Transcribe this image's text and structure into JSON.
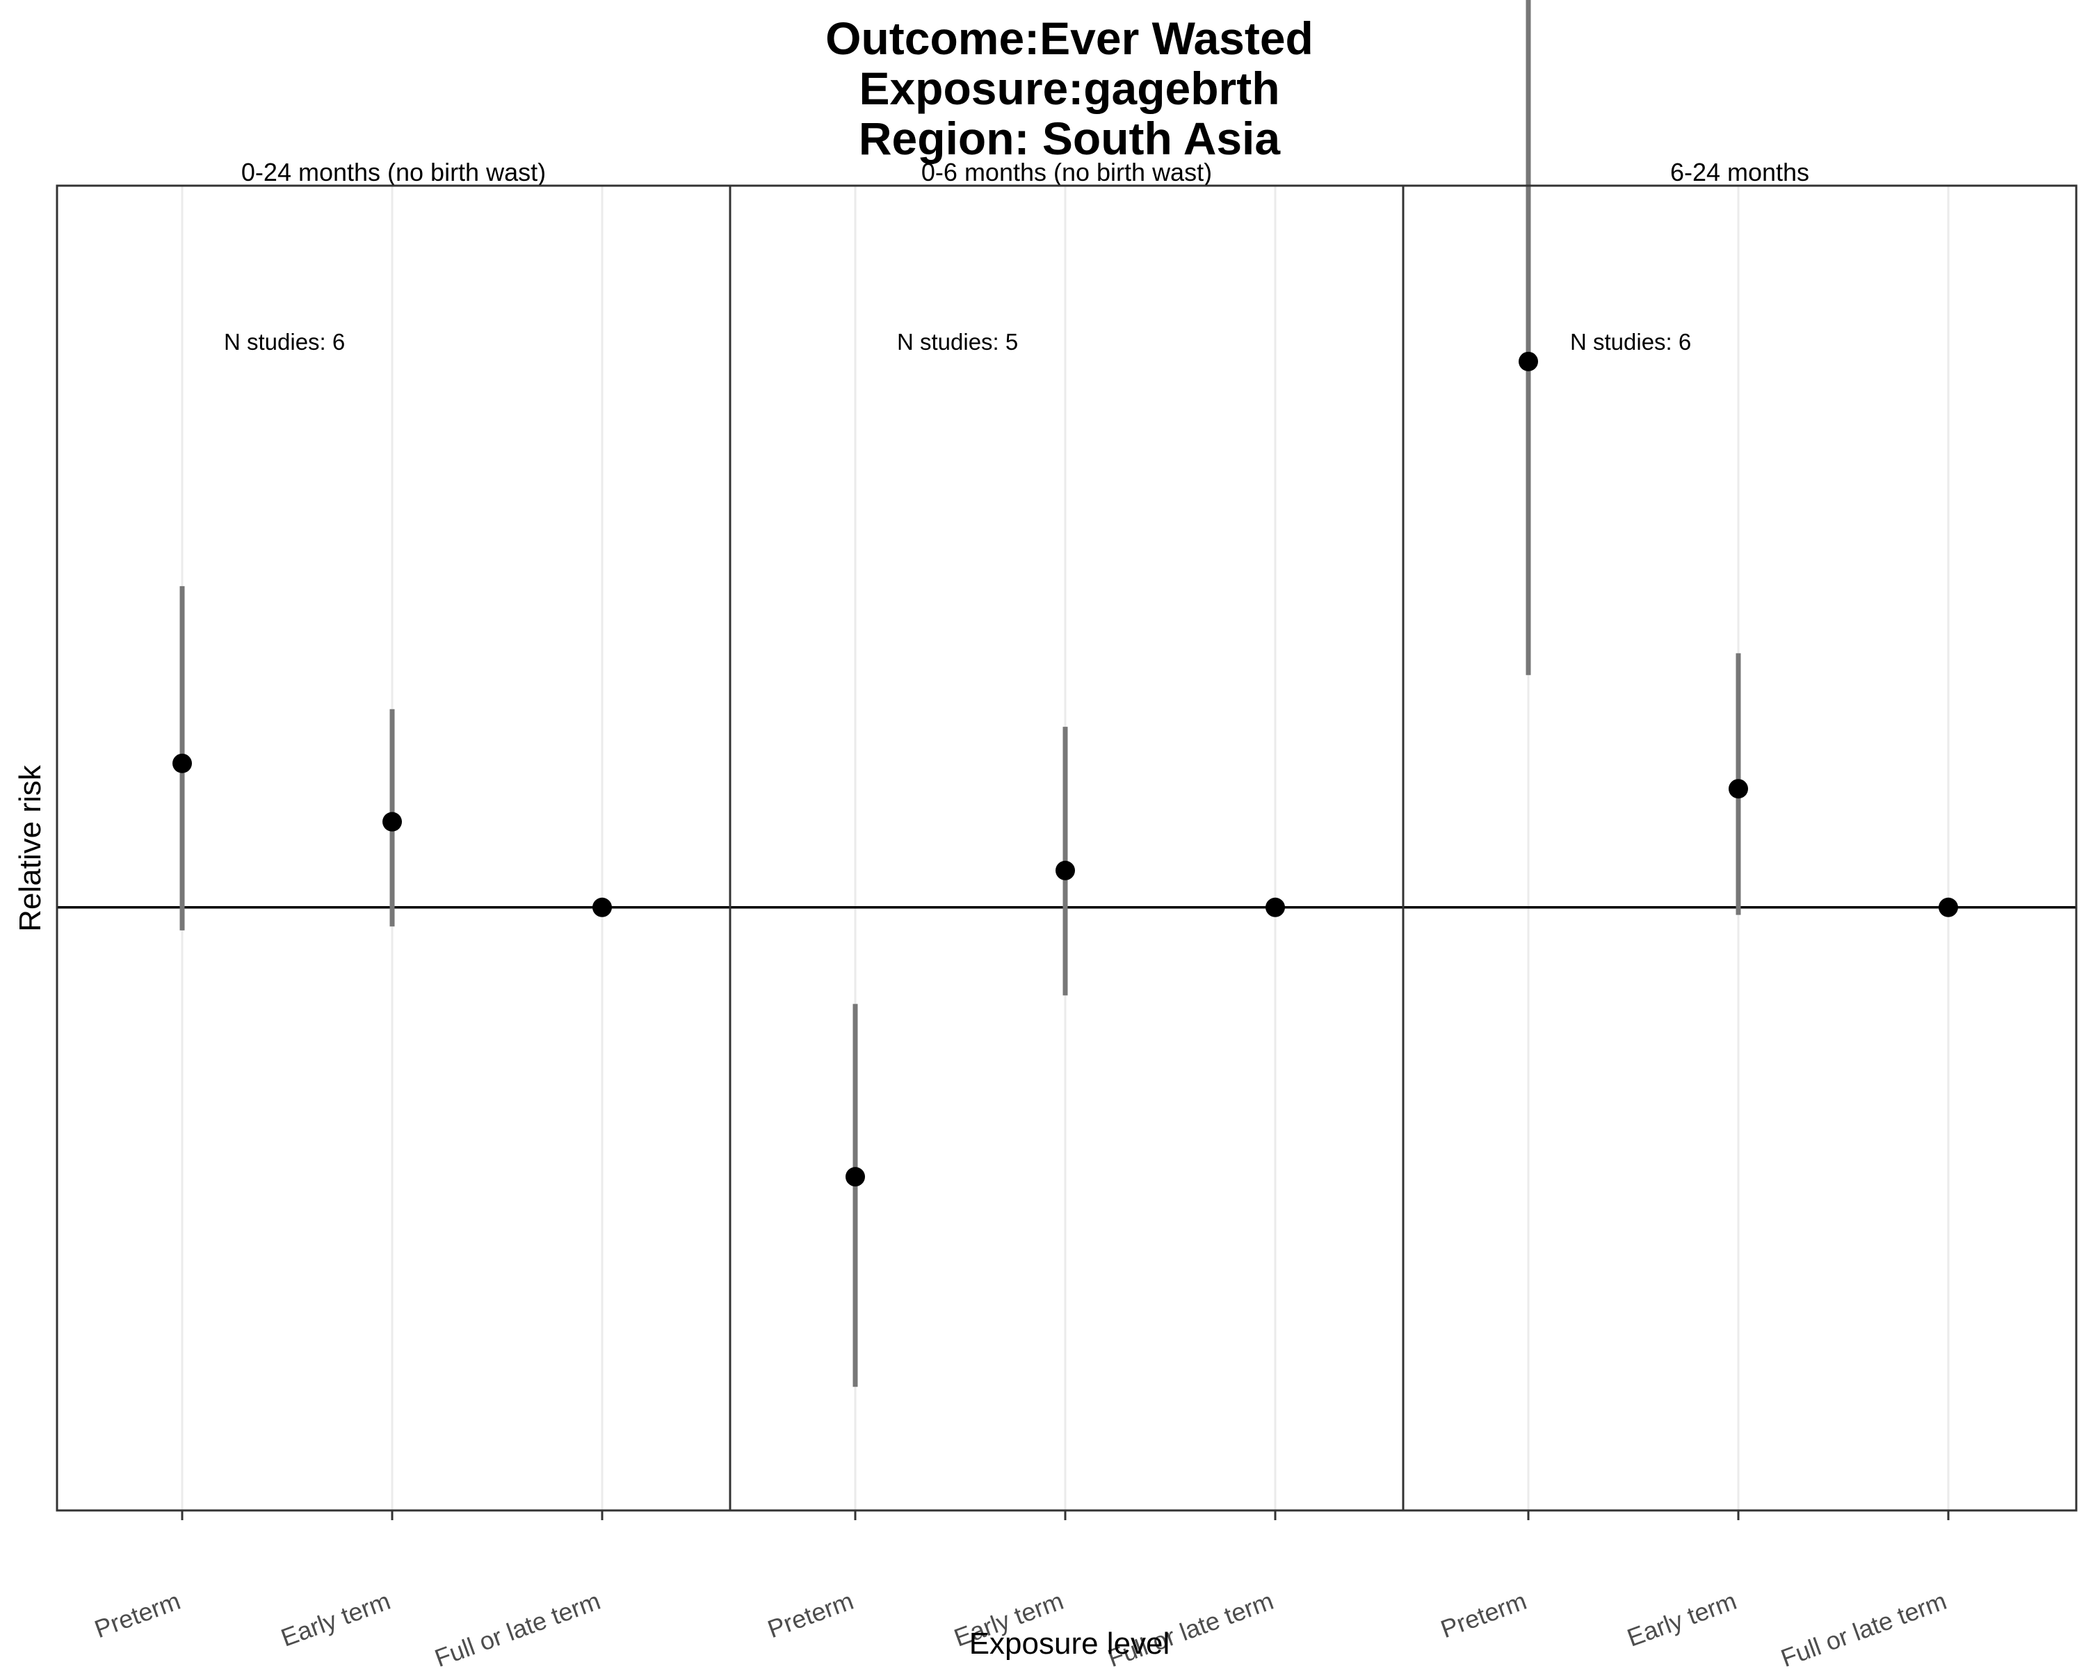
{
  "title_lines": [
    "Outcome:Ever Wasted",
    "Exposure:gagebrth",
    "Region: South Asia"
  ],
  "xlabel": "Exposure level",
  "ylabel": "Relative risk",
  "chart_data": {
    "type": "scatter",
    "subtype": "point-range faceted",
    "title": "Outcome:Ever Wasted\nExposure:gagebrth\nRegion: South Asia",
    "xlabel": "Exposure level",
    "ylabel": "Relative risk",
    "categories": [
      "Preterm",
      "Early term",
      "Full or late term"
    ],
    "y_scale": "log",
    "ylim": [
      0.45,
      2.6
    ],
    "reference_line": 1,
    "grid": "vertical major lines only",
    "facets": [
      {
        "label": "0-24 months (no birth wast)",
        "annotation": "N studies: 6",
        "points": [
          {
            "category": "Preterm",
            "estimate": 1.21,
            "ci_lower": 0.97,
            "ci_upper": 1.53
          },
          {
            "category": "Early term",
            "estimate": 1.12,
            "ci_lower": 0.975,
            "ci_upper": 1.3
          },
          {
            "category": "Full or late term",
            "estimate": 1.0,
            "ci_lower": 1.0,
            "ci_upper": 1.0
          }
        ]
      },
      {
        "label": "0-6 months (no birth wast)",
        "annotation": "N studies: 5",
        "points": [
          {
            "category": "Preterm",
            "estimate": 0.7,
            "ci_lower": 0.53,
            "ci_upper": 0.88
          },
          {
            "category": "Early term",
            "estimate": 1.05,
            "ci_lower": 0.89,
            "ci_upper": 1.27
          },
          {
            "category": "Full or late term",
            "estimate": 1.0,
            "ci_lower": 1.0,
            "ci_upper": 1.0
          }
        ]
      },
      {
        "label": "6-24 months",
        "annotation": "N studies: 6",
        "points": [
          {
            "category": "Preterm",
            "estimate": 2.06,
            "ci_lower": 1.36,
            "ci_upper": 3.35
          },
          {
            "category": "Early term",
            "estimate": 1.17,
            "ci_lower": 0.99,
            "ci_upper": 1.4
          },
          {
            "category": "Full or late term",
            "estimate": 1.0,
            "ci_lower": 1.0,
            "ci_upper": 1.0
          }
        ]
      }
    ]
  }
}
